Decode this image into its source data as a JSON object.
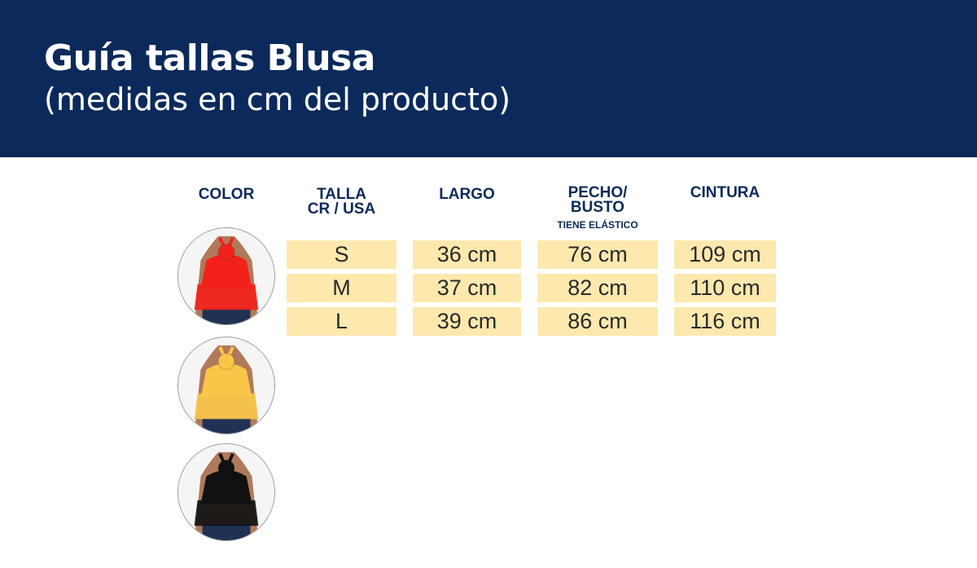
{
  "header": {
    "title": "Guía tallas Blusa",
    "subtitle": "(medidas en cm del producto)"
  },
  "columns": {
    "color": "COLOR",
    "talla": [
      "TALLA",
      "CR / USA"
    ],
    "largo": "LARGO",
    "pecho": [
      "PECHO/",
      "BUSTO"
    ],
    "pecho_note": "TIENE ELÁSTICO",
    "cintura": "CINTURA"
  },
  "colors": [
    {
      "name": "red",
      "hex": "#f2221b"
    },
    {
      "name": "yellow",
      "hex": "#f9c64a"
    },
    {
      "name": "black",
      "hex": "#111111"
    }
  ],
  "rows": [
    {
      "talla": "S",
      "largo": "36 cm",
      "pecho": "76 cm",
      "cintura": "109 cm"
    },
    {
      "talla": "M",
      "largo": "37 cm",
      "pecho": "82 cm",
      "cintura": "110 cm"
    },
    {
      "talla": "L",
      "largo": "39 cm",
      "pecho": "86 cm",
      "cintura": "116 cm"
    }
  ]
}
